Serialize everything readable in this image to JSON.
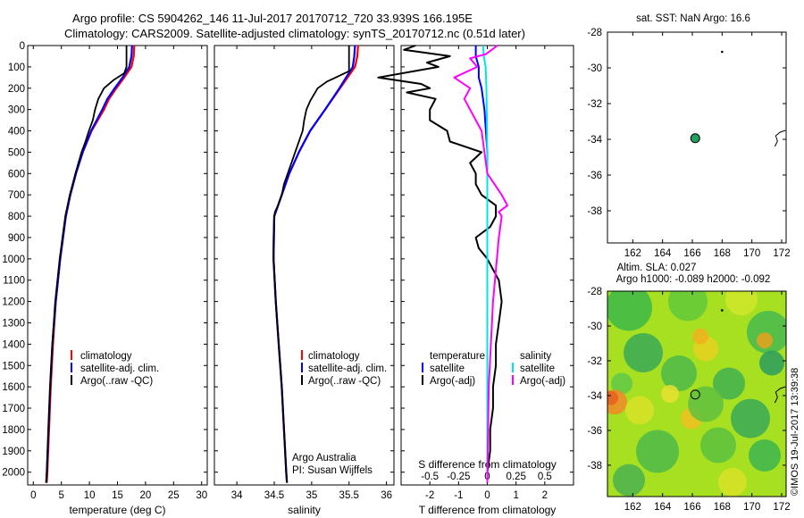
{
  "header": {
    "line1": "Argo profile: CS 5904262_146 11-Jul-2017 20170712_720 33.939S 166.195E",
    "line2": "Climatology: CARS2009. Satellite-adjusted climatology: synTS_20170712.nc (0.51d later)"
  },
  "stamp": "©IMOS 19-Jul-2017 13:39:38",
  "colors": {
    "climatology": "#ff0000",
    "satellite": "#0000ff",
    "argo": "#000000",
    "sal_satellite": "#00e5e5",
    "sal_argo": "#ff00ff",
    "dot": "#22a060"
  },
  "legends": {
    "temperature": {
      "items": [
        "climatology",
        "satellite-adj. clim.",
        "Argo(..raw -QC)"
      ]
    },
    "salinity": {
      "items": [
        "climatology",
        "satellite-adj. clim.",
        "Argo(..raw -QC)"
      ],
      "credit1": "Argo Australia",
      "credit2": "PI: Susan Wijffels"
    },
    "difference": {
      "temp_head": "temperature",
      "sal_head": "salinity",
      "temp_items": [
        "satellite",
        "Argo(-adj)"
      ],
      "sal_items": [
        "satellite",
        "Argo(-adj)"
      ]
    }
  },
  "maps": {
    "sst_title": "sat. SST: NaN Argo: 16.6",
    "sla_title1": "Altim. SLA: 0.027",
    "sla_title2": "Argo h1000: -0.089 h2000: -0.092"
  },
  "chart_data": [
    {
      "type": "line",
      "panel": "temperature",
      "xlabel": "temperature (deg C)",
      "ylabel": "",
      "xlim": [
        -1,
        31
      ],
      "ylim": [
        2060,
        0
      ],
      "xticks": [
        0,
        5,
        10,
        15,
        20,
        25,
        30
      ],
      "yticks": [
        0,
        100,
        200,
        300,
        400,
        500,
        600,
        700,
        800,
        900,
        1000,
        1100,
        1200,
        1300,
        1400,
        1500,
        1600,
        1700,
        1800,
        1900,
        2000
      ],
      "series": [
        {
          "name": "climatology",
          "depth": [
            0,
            50,
            100,
            150,
            200,
            250,
            300,
            400,
            500,
            600,
            700,
            800,
            1000,
            1200,
            1400,
            1600,
            1800,
            2000,
            2050
          ],
          "values": [
            18.0,
            17.9,
            17.5,
            16.2,
            14.8,
            13.5,
            12.6,
            10.4,
            8.8,
            7.6,
            6.6,
            5.8,
            4.8,
            4.0,
            3.5,
            3.1,
            2.8,
            2.5,
            2.4
          ]
        },
        {
          "name": "satellite-adj. clim.",
          "depth": [
            0,
            50,
            100,
            150,
            200,
            250,
            300,
            400,
            500,
            600,
            700,
            800,
            1000,
            1200,
            1400,
            1600,
            1800,
            2000,
            2050
          ],
          "values": [
            17.6,
            17.5,
            17.1,
            15.9,
            14.5,
            13.2,
            12.3,
            10.3,
            8.8,
            7.6,
            6.6,
            5.8,
            4.8,
            4.0,
            3.4,
            3.0,
            2.7,
            2.4,
            2.3
          ]
        },
        {
          "name": "Argo(..raw -QC)",
          "depth": [
            0,
            100,
            130,
            160,
            200,
            250,
            300,
            350,
            400,
            450,
            500,
            600,
            700,
            800,
            1000,
            1200,
            1400,
            1600,
            1800,
            2000,
            2050
          ],
          "values": [
            16.6,
            16.6,
            16.2,
            14.4,
            12.6,
            11.6,
            11.0,
            10.6,
            9.9,
            9.3,
            8.6,
            7.5,
            6.5,
            5.7,
            4.7,
            3.9,
            3.4,
            3.0,
            2.7,
            2.4,
            2.3
          ]
        }
      ]
    },
    {
      "type": "line",
      "panel": "salinity",
      "xlabel": "salinity",
      "ylabel": "",
      "xlim": [
        33.7,
        36.1
      ],
      "ylim": [
        2060,
        0
      ],
      "xticks": [
        34,
        34.5,
        35,
        35.5,
        36
      ],
      "series": [
        {
          "name": "climatology",
          "depth": [
            0,
            50,
            100,
            150,
            200,
            300,
            400,
            500,
            600,
            700,
            800,
            1000,
            1200,
            1400,
            1600,
            1800,
            2000,
            2050
          ],
          "values": [
            35.62,
            35.61,
            35.58,
            35.48,
            35.38,
            35.18,
            34.98,
            34.83,
            34.7,
            34.6,
            34.5,
            34.49,
            34.52,
            34.56,
            34.6,
            34.63,
            34.66,
            34.67
          ]
        },
        {
          "name": "satellite-adj. clim.",
          "depth": [
            0,
            50,
            100,
            150,
            200,
            300,
            400,
            500,
            600,
            700,
            800,
            1000,
            1200,
            1400,
            1600,
            1800,
            2000,
            2050
          ],
          "values": [
            35.58,
            35.57,
            35.55,
            35.46,
            35.37,
            35.18,
            34.98,
            34.83,
            34.7,
            34.6,
            34.5,
            34.49,
            34.52,
            34.56,
            34.6,
            34.63,
            34.66,
            34.67
          ]
        },
        {
          "name": "Argo(..raw -QC)",
          "depth": [
            0,
            120,
            140,
            170,
            200,
            260,
            300,
            350,
            400,
            500,
            600,
            650,
            700,
            750,
            780,
            800,
            900,
            1000,
            1200,
            1400,
            1600,
            1800,
            2000,
            2050
          ],
          "values": [
            35.5,
            35.5,
            35.38,
            35.2,
            35.08,
            34.98,
            34.93,
            34.9,
            34.88,
            34.78,
            34.68,
            34.63,
            34.6,
            34.55,
            34.51,
            34.5,
            34.49,
            34.49,
            34.52,
            34.56,
            34.6,
            34.63,
            34.66,
            34.67
          ]
        }
      ]
    },
    {
      "type": "line",
      "panel": "difference",
      "xlabel": "T difference from climatology",
      "x2label": "S difference from climatology",
      "xlim": [
        -3,
        3
      ],
      "ylim": [
        2060,
        0
      ],
      "xticks": [
        -2,
        -1,
        0,
        1,
        2
      ],
      "x2ticks": [
        "-0.5",
        "-0.25",
        "0",
        "0.25",
        "0.5"
      ],
      "series": [
        {
          "name": "temperature satellite",
          "depth": [
            0,
            50,
            100,
            150,
            200,
            300,
            500,
            800,
            1200,
            1600,
            2050
          ],
          "values": [
            -0.4,
            -0.4,
            -0.3,
            -0.3,
            -0.2,
            -0.1,
            0,
            0,
            0,
            0,
            0
          ]
        },
        {
          "name": "temperature Argo(-adj)",
          "depth": [
            0,
            20,
            50,
            80,
            100,
            150,
            180,
            200,
            220,
            250,
            300,
            350,
            400,
            450,
            500,
            550,
            600,
            650,
            700,
            750,
            800,
            850,
            900,
            950,
            1000,
            1050,
            1100,
            1200,
            1300,
            1400,
            1500,
            1600,
            1700,
            1800,
            1900,
            2000,
            2050
          ],
          "values": [
            -2.5,
            -2.9,
            -1.3,
            -2.1,
            -1.7,
            -3.8,
            -2.3,
            -2.0,
            -2.8,
            -1.8,
            -2.0,
            -2.0,
            -1.4,
            -1.3,
            -0.2,
            -0.6,
            -0.4,
            -0.4,
            -0.2,
            0.3,
            0.3,
            0.1,
            -0.4,
            -0.3,
            0.0,
            0.2,
            0.4,
            0.5,
            0.4,
            0.3,
            0.3,
            0.2,
            0.2,
            0.1,
            0.1,
            0.0,
            0.0
          ]
        },
        {
          "name": "salinity satellite",
          "depth": [
            0,
            50,
            100,
            200,
            400,
            600,
            800,
            1200,
            1600,
            2050
          ],
          "values": [
            -0.15,
            -0.12,
            -0.06,
            -0.03,
            -0.01,
            0,
            0,
            0,
            0,
            0
          ]
        },
        {
          "name": "salinity Argo(-adj)",
          "depth": [
            0,
            40,
            60,
            100,
            150,
            200,
            250,
            300,
            400,
            500,
            600,
            700,
            750,
            780,
            800,
            900,
            1200,
            1600,
            2050
          ],
          "values": [
            0.35,
            -0.05,
            -0.6,
            -0.35,
            -1.15,
            -0.6,
            -0.8,
            -0.6,
            -0.2,
            -0.1,
            0,
            0.5,
            0.7,
            0.4,
            0.5,
            0.4,
            0.2,
            0.05,
            0
          ]
        }
      ]
    },
    {
      "type": "scatter",
      "panel": "map-sst",
      "title": "sat. SST: NaN Argo: 16.6",
      "xlim": [
        160.3,
        172.3
      ],
      "ylim": [
        -39.8,
        -28
      ],
      "xticks": [
        162,
        164,
        166,
        168,
        170,
        172
      ],
      "yticks": [
        -28,
        -30,
        -32,
        -34,
        -36,
        -38
      ],
      "points": [
        {
          "lon": 166.195,
          "lat": -33.939
        },
        {
          "lon": 168,
          "lat": -29.1
        }
      ]
    },
    {
      "type": "heatmap",
      "panel": "map-sla",
      "title": "Altim. SLA: 0.027",
      "xlim": [
        160.3,
        172.3
      ],
      "ylim": [
        -39.8,
        -28
      ],
      "xticks": [
        162,
        164,
        166,
        168,
        170,
        172
      ],
      "yticks": [
        -28,
        -30,
        -32,
        -34,
        -36,
        -38
      ],
      "points": [
        {
          "lon": 166.195,
          "lat": -33.939
        },
        {
          "lon": 168,
          "lat": -29.1
        }
      ]
    }
  ]
}
